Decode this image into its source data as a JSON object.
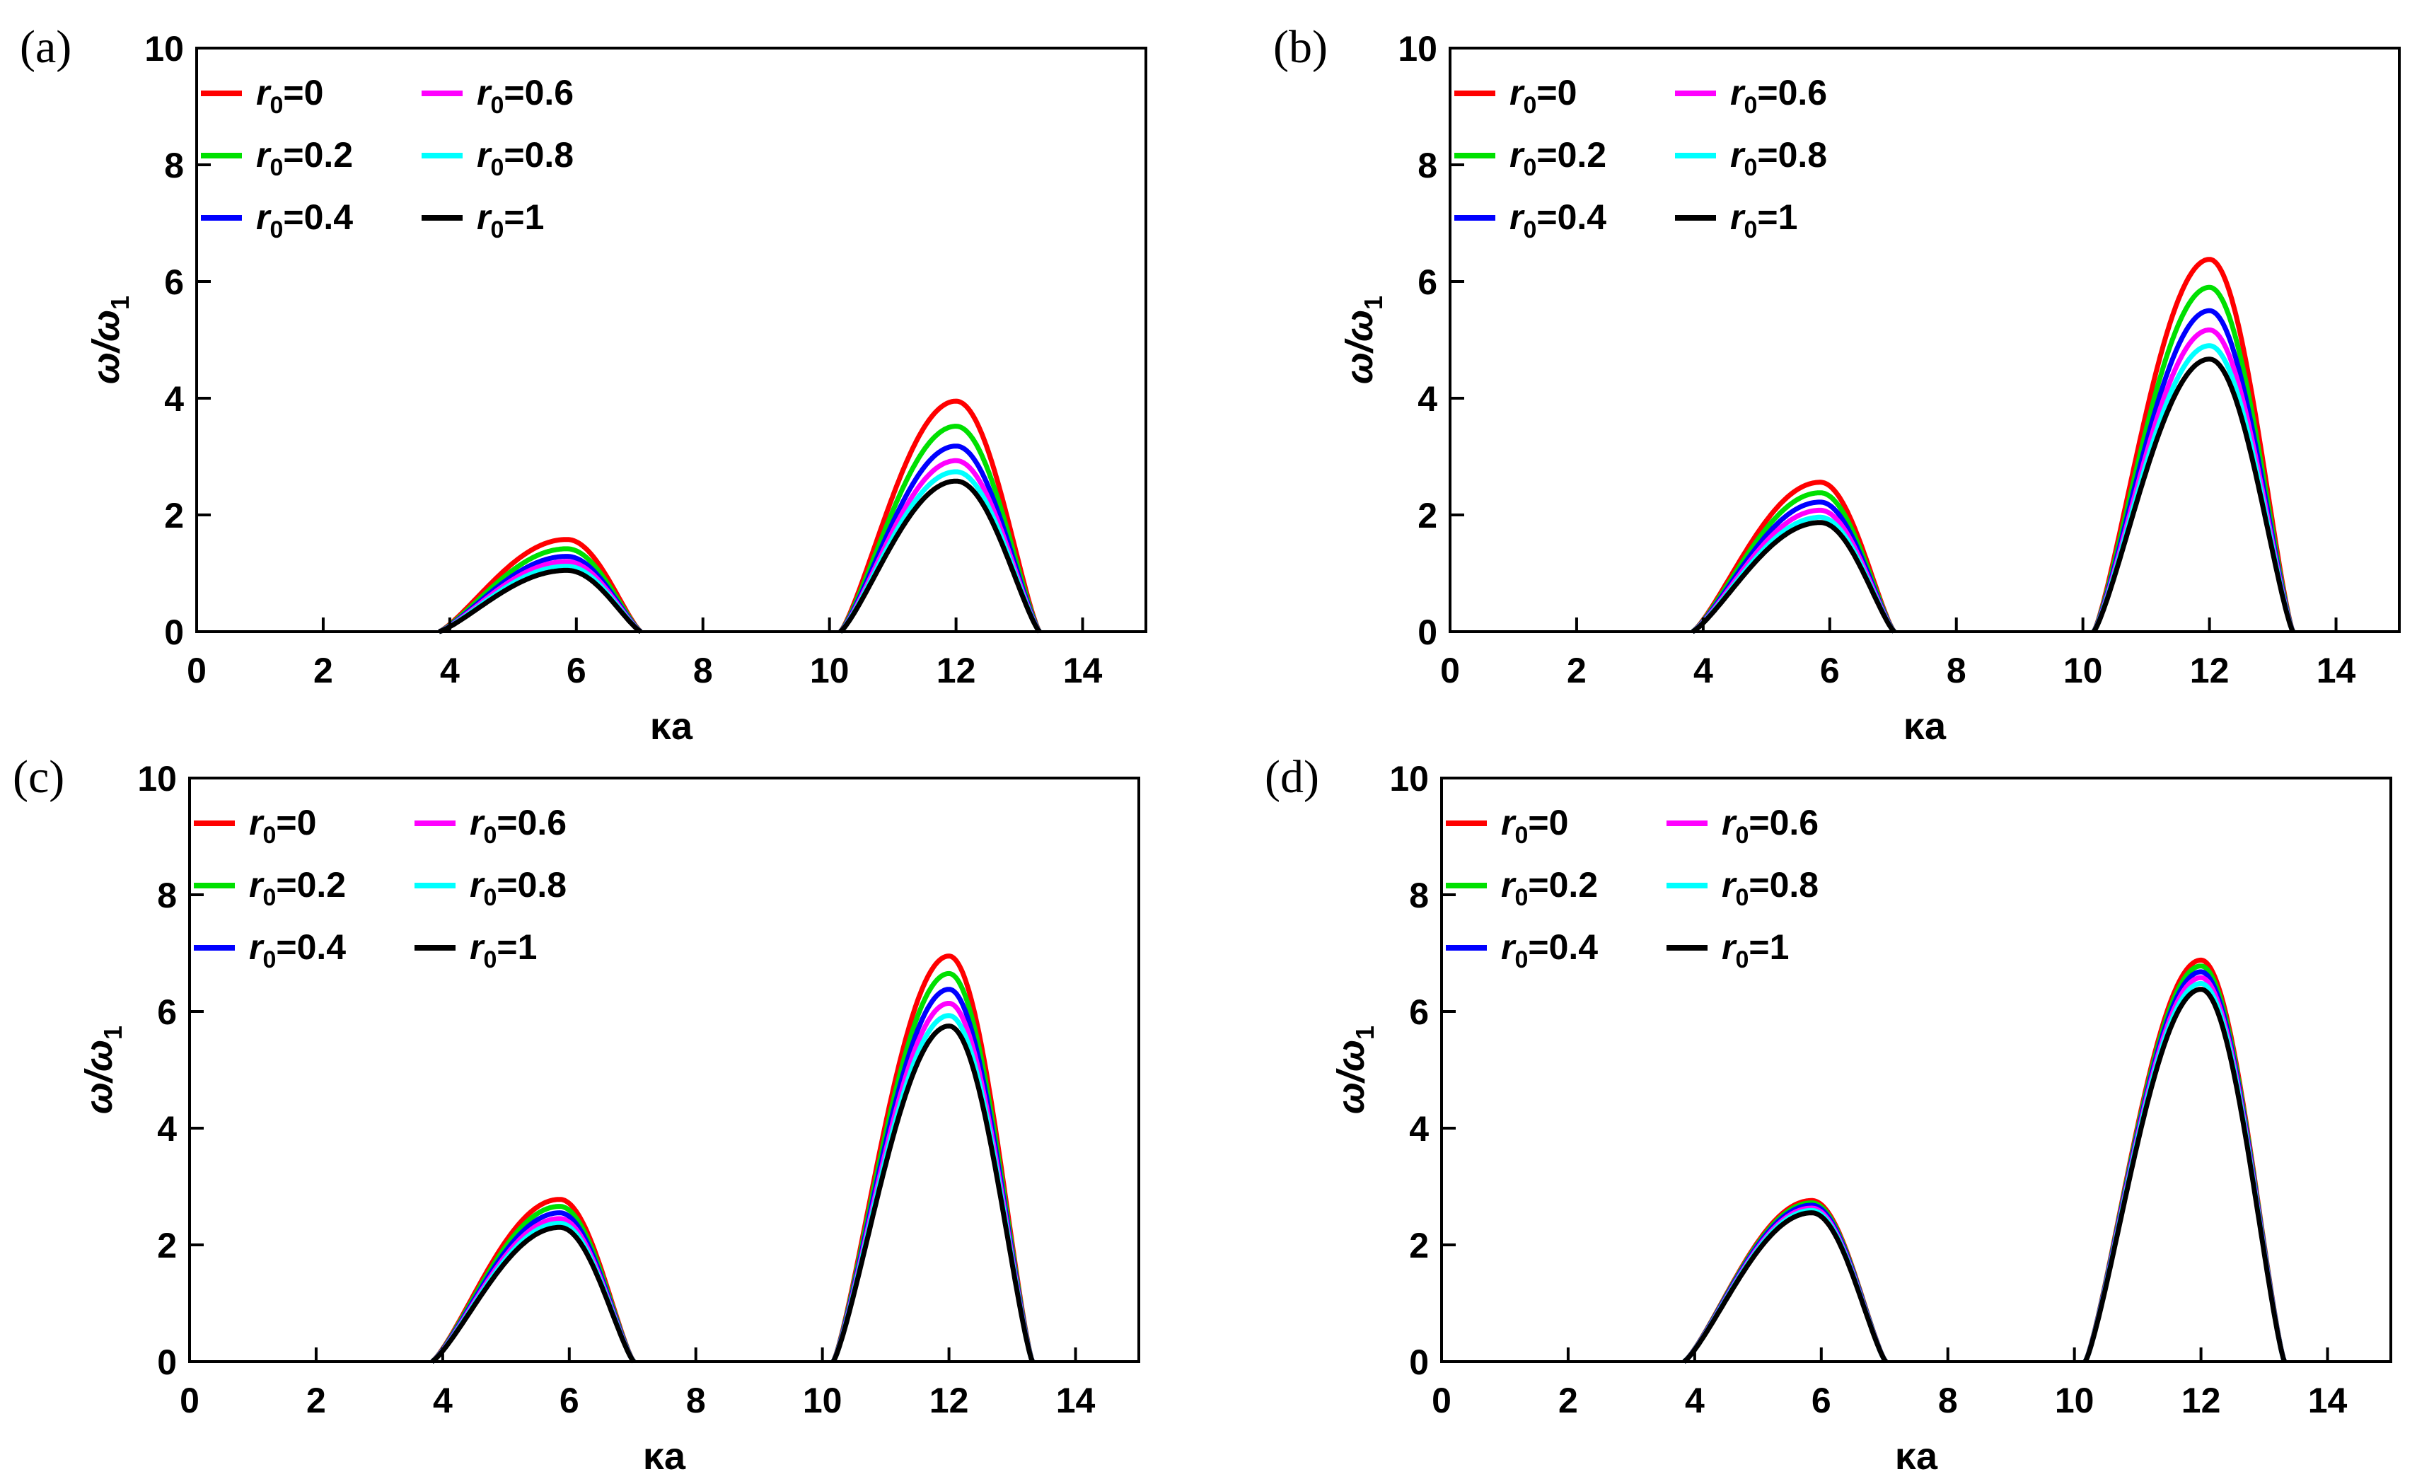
{
  "chart_data": [
    {
      "type": "line",
      "panel_label": "(a)",
      "xlabel": "κa",
      "ylabel": "ω/ω",
      "ylabel_sub": "1",
      "xlim": [
        0,
        15
      ],
      "ylim": [
        0,
        10
      ],
      "xticks": [
        0,
        2,
        4,
        6,
        8,
        10,
        12,
        14
      ],
      "yticks": [
        0,
        2,
        4,
        6,
        8,
        10
      ],
      "legend_position": "top-left",
      "series": [
        {
          "name": "r0=0",
          "base": "r",
          "sub": "0",
          "value_text": "=0",
          "color": "#ff0000",
          "peak1": 1.58,
          "peak2": 3.95
        },
        {
          "name": "r0=0.2",
          "base": "r",
          "sub": "0",
          "value_text": "=0.2",
          "color": "#00e000",
          "peak1": 1.42,
          "peak2": 3.52
        },
        {
          "name": "r0=0.4",
          "base": "r",
          "sub": "0",
          "value_text": "=0.4",
          "color": "#0000ff",
          "peak1": 1.29,
          "peak2": 3.18
        },
        {
          "name": "r0=0.6",
          "base": "r",
          "sub": "0",
          "value_text": "=0.6",
          "color": "#ff00ff",
          "peak1": 1.2,
          "peak2": 2.93
        },
        {
          "name": "r0=0.8",
          "base": "r",
          "sub": "0",
          "value_text": "=0.8",
          "color": "#00ffff",
          "peak1": 1.12,
          "peak2": 2.74
        },
        {
          "name": "r0=1",
          "base": "r",
          "sub": "0",
          "value_text": "=1",
          "color": "#000000",
          "peak1": 1.05,
          "peak2": 2.58
        }
      ]
    },
    {
      "type": "line",
      "panel_label": "(b)",
      "xlabel": "κa",
      "ylabel": "ω/ω",
      "ylabel_sub": "1",
      "xlim": [
        0,
        15
      ],
      "ylim": [
        0,
        10
      ],
      "xticks": [
        0,
        2,
        4,
        6,
        8,
        10,
        12,
        14
      ],
      "yticks": [
        0,
        2,
        4,
        6,
        8,
        10
      ],
      "legend_position": "top-left",
      "series": [
        {
          "name": "r0=0",
          "base": "r",
          "sub": "0",
          "value_text": "=0",
          "color": "#ff0000",
          "peak1": 2.56,
          "peak2": 6.38
        },
        {
          "name": "r0=0.2",
          "base": "r",
          "sub": "0",
          "value_text": "=0.2",
          "color": "#00e000",
          "peak1": 2.38,
          "peak2": 5.9
        },
        {
          "name": "r0=0.4",
          "base": "r",
          "sub": "0",
          "value_text": "=0.4",
          "color": "#0000ff",
          "peak1": 2.22,
          "peak2": 5.5
        },
        {
          "name": "r0=0.6",
          "base": "r",
          "sub": "0",
          "value_text": "=0.6",
          "color": "#ff00ff",
          "peak1": 2.08,
          "peak2": 5.17
        },
        {
          "name": "r0=0.8",
          "base": "r",
          "sub": "0",
          "value_text": "=0.8",
          "color": "#00ffff",
          "peak1": 1.96,
          "peak2": 4.9
        },
        {
          "name": "r0=1",
          "base": "r",
          "sub": "0",
          "value_text": "=1",
          "color": "#000000",
          "peak1": 1.87,
          "peak2": 4.67
        }
      ]
    },
    {
      "type": "line",
      "panel_label": "(c)",
      "xlabel": "κa",
      "ylabel": "ω/ω",
      "ylabel_sub": "1",
      "xlim": [
        0,
        15
      ],
      "ylim": [
        0,
        10
      ],
      "xticks": [
        0,
        2,
        4,
        6,
        8,
        10,
        12,
        14
      ],
      "yticks": [
        0,
        2,
        4,
        6,
        8,
        10
      ],
      "legend_position": "top-left",
      "series": [
        {
          "name": "r0=0",
          "base": "r",
          "sub": "0",
          "value_text": "=0",
          "color": "#ff0000",
          "peak1": 2.78,
          "peak2": 6.95
        },
        {
          "name": "r0=0.2",
          "base": "r",
          "sub": "0",
          "value_text": "=0.2",
          "color": "#00e000",
          "peak1": 2.66,
          "peak2": 6.65
        },
        {
          "name": "r0=0.4",
          "base": "r",
          "sub": "0",
          "value_text": "=0.4",
          "color": "#0000ff",
          "peak1": 2.55,
          "peak2": 6.38
        },
        {
          "name": "r0=0.6",
          "base": "r",
          "sub": "0",
          "value_text": "=0.6",
          "color": "#ff00ff",
          "peak1": 2.45,
          "peak2": 6.14
        },
        {
          "name": "r0=0.8",
          "base": "r",
          "sub": "0",
          "value_text": "=0.8",
          "color": "#00ffff",
          "peak1": 2.37,
          "peak2": 5.93
        },
        {
          "name": "r0=1",
          "base": "r",
          "sub": "0",
          "value_text": "=1",
          "color": "#000000",
          "peak1": 2.3,
          "peak2": 5.75
        }
      ]
    },
    {
      "type": "line",
      "panel_label": "(d)",
      "xlabel": "κa",
      "ylabel": "ω/ω",
      "ylabel_sub": "1",
      "xlim": [
        0,
        15
      ],
      "ylim": [
        0,
        10
      ],
      "xticks": [
        0,
        2,
        4,
        6,
        8,
        10,
        12,
        14
      ],
      "yticks": [
        0,
        2,
        4,
        6,
        8,
        10
      ],
      "legend_position": "top-left",
      "series": [
        {
          "name": "r0=0",
          "base": "r",
          "sub": "0",
          "value_text": "=0",
          "color": "#ff0000",
          "peak1": 2.76,
          "peak2": 6.88
        },
        {
          "name": "r0=0.2",
          "base": "r",
          "sub": "0",
          "value_text": "=0.2",
          "color": "#00e000",
          "peak1": 2.72,
          "peak2": 6.78
        },
        {
          "name": "r0=0.4",
          "base": "r",
          "sub": "0",
          "value_text": "=0.4",
          "color": "#0000ff",
          "peak1": 2.68,
          "peak2": 6.68
        },
        {
          "name": "r0=0.6",
          "base": "r",
          "sub": "0",
          "value_text": "=0.6",
          "color": "#ff00ff",
          "peak1": 2.63,
          "peak2": 6.58
        },
        {
          "name": "r0=0.8",
          "base": "r",
          "sub": "0",
          "value_text": "=0.8",
          "color": "#00ffff",
          "peak1": 2.59,
          "peak2": 6.48
        },
        {
          "name": "r0=1",
          "base": "r",
          "sub": "0",
          "value_text": "=1",
          "color": "#000000",
          "peak1": 2.55,
          "peak2": 6.38
        }
      ]
    }
  ],
  "instability_bands": [
    {
      "start": 3.83,
      "peak_at": 5.85,
      "end": 7.02
    },
    {
      "start": 10.17,
      "peak_at": 12.0,
      "end": 13.32
    }
  ]
}
